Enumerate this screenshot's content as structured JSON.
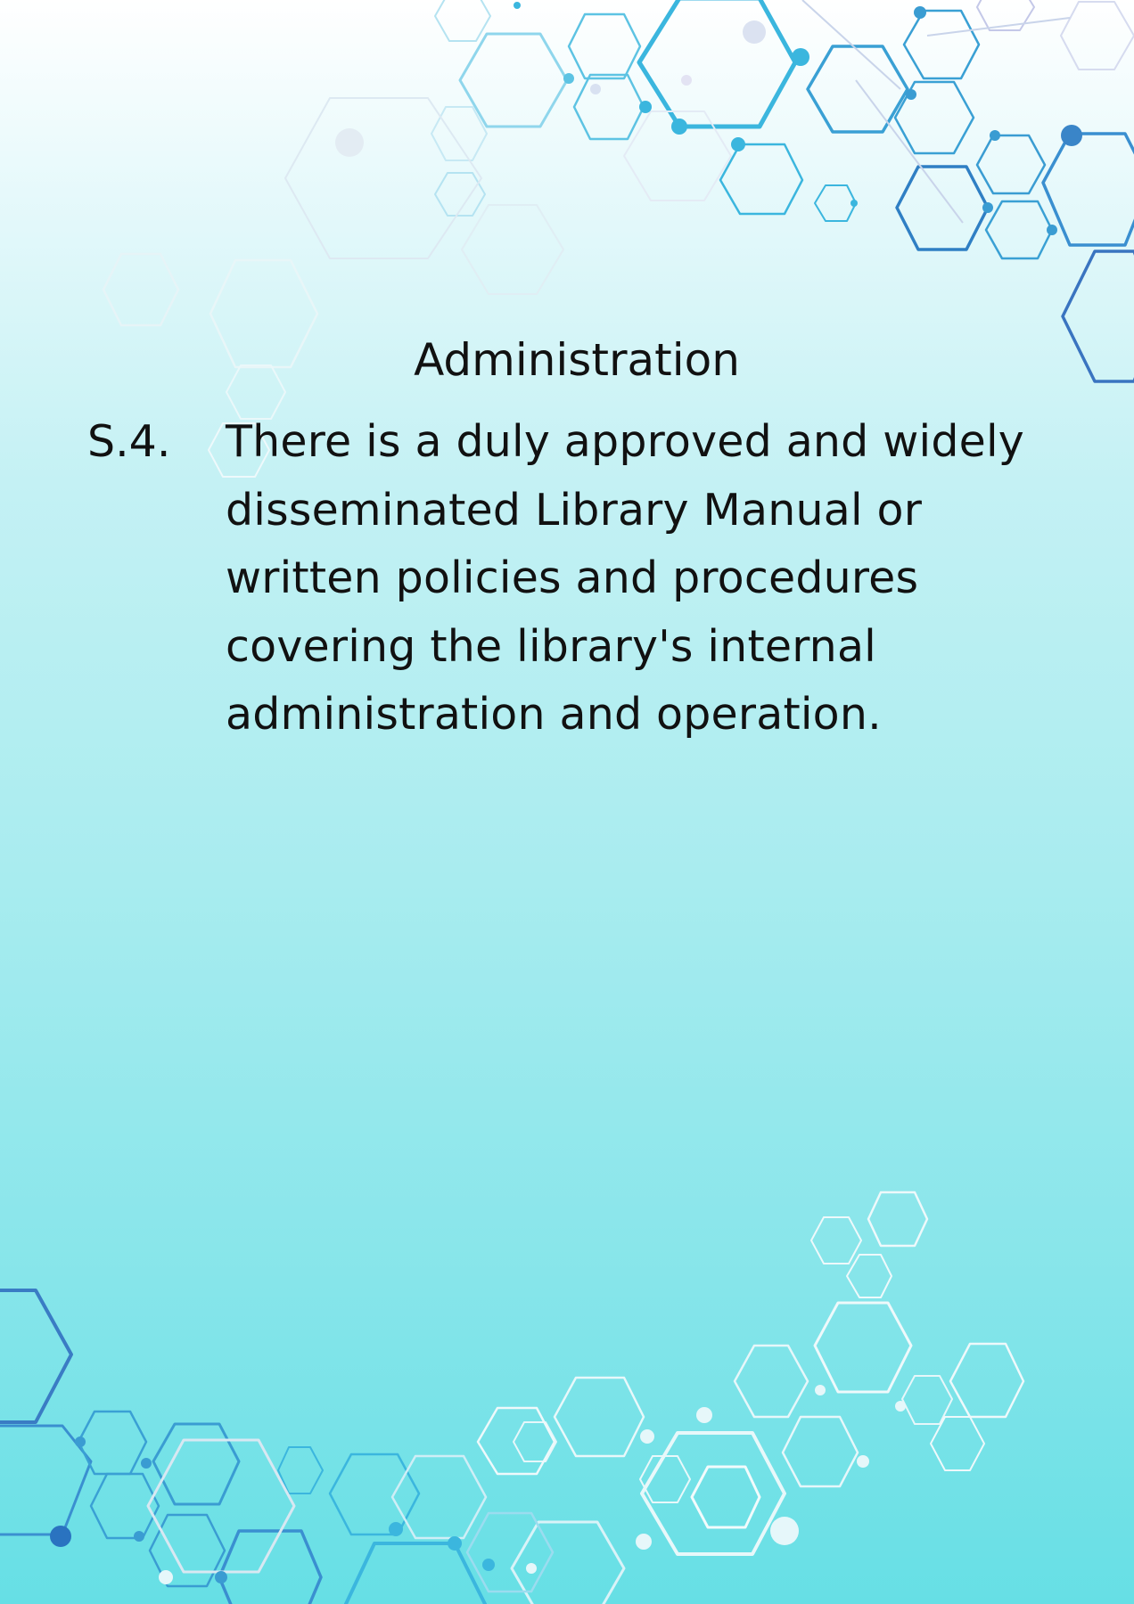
{
  "document": {
    "title": "Administration",
    "standard": {
      "number": "S.4.",
      "text": "There is a duly approved and widely disseminated Library Manual or written policies and procedures covering the library's internal administration and operation."
    }
  },
  "colors": {
    "background_top": "#ffffff",
    "background_bottom": "#66dfe5",
    "hexagon_dark": "#2f7fc4",
    "hexagon_mid": "#3bb6de",
    "hexagon_light": "#ffffff"
  }
}
